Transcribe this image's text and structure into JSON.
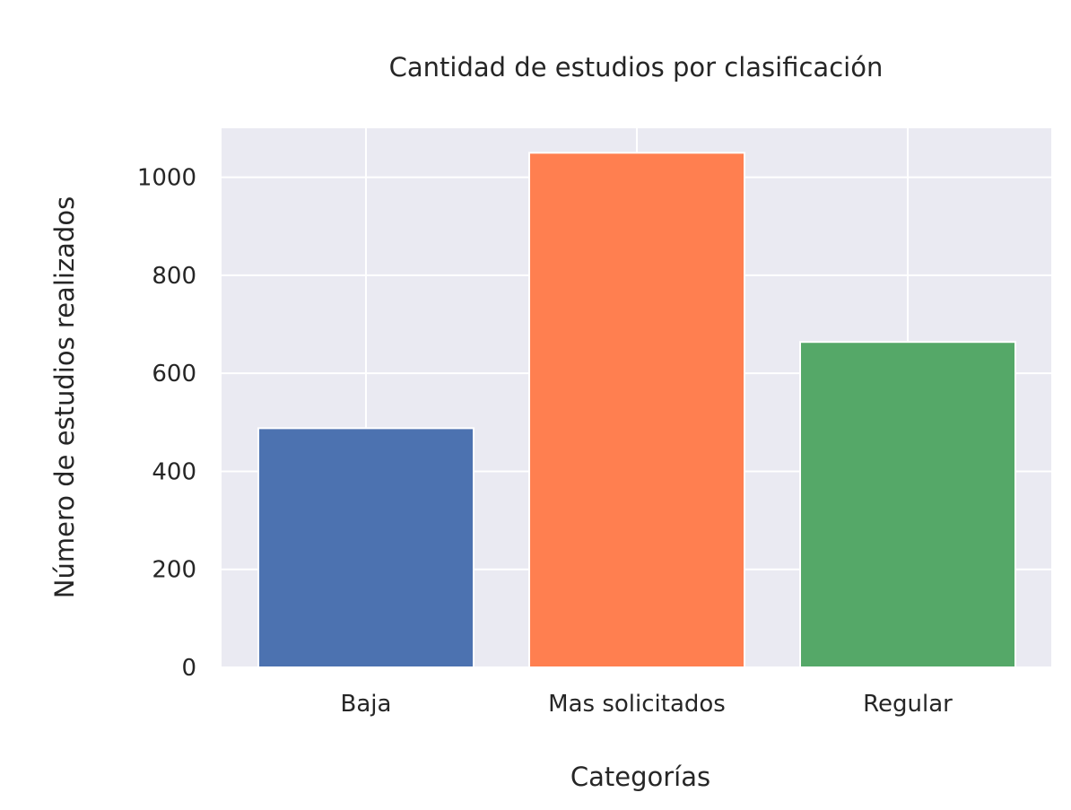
{
  "chart_data": {
    "type": "bar",
    "title": "Cantidad de estudios por clasificación",
    "xlabel": "Categorías",
    "ylabel": "Número de estudios realizados",
    "categories": [
      "Baja",
      "Mas solicitados",
      "Regular"
    ],
    "values": [
      488,
      1050,
      664
    ],
    "colors": [
      "#4c72b0",
      "#ff7f50",
      "#55a868"
    ],
    "yticks": [
      0,
      200,
      400,
      600,
      800,
      1000
    ],
    "ylim": [
      0,
      1100
    ],
    "grid": true,
    "background": "#eaeaf2"
  }
}
